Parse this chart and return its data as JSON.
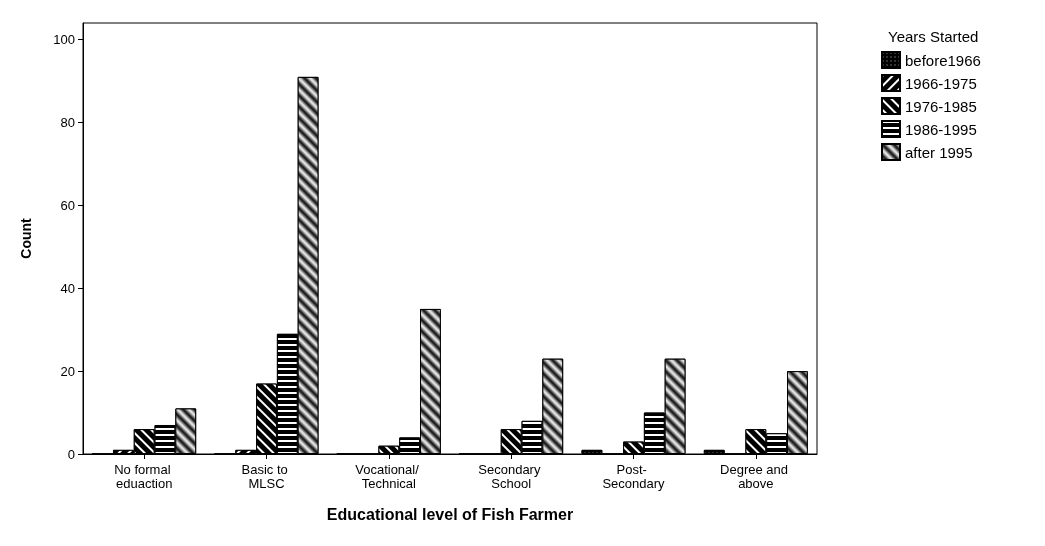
{
  "chart_data": {
    "type": "bar",
    "xlabel": "Educational level of Fish Farmer",
    "ylabel": "Count",
    "legend_title": "Years Started",
    "categories": [
      "No formal eduaction",
      "Basic to MLSC",
      "Vocational/ Technical",
      "Secondary School",
      "Post- Secondary",
      "Degree and above"
    ],
    "series": [
      {
        "name": "before1966",
        "color": "#000000",
        "values": [
          0,
          0,
          0,
          0,
          1,
          1
        ]
      },
      {
        "name": "1966-1975",
        "color": "#000000",
        "values": [
          1,
          1,
          0,
          0,
          0,
          0
        ]
      },
      {
        "name": "1976-1985",
        "color": "#000000",
        "values": [
          6,
          17,
          2,
          6,
          3,
          6
        ]
      },
      {
        "name": "1986-1995",
        "color": "#000000",
        "values": [
          7,
          29,
          4,
          8,
          10,
          5
        ]
      },
      {
        "name": "after 1995",
        "color": "#000000",
        "values": [
          11,
          91,
          35,
          23,
          23,
          20
        ]
      }
    ],
    "ylim": [
      0,
      104
    ],
    "yticks": [
      0,
      20,
      40,
      60,
      80,
      100
    ],
    "grid": false,
    "legend": "top right"
  }
}
